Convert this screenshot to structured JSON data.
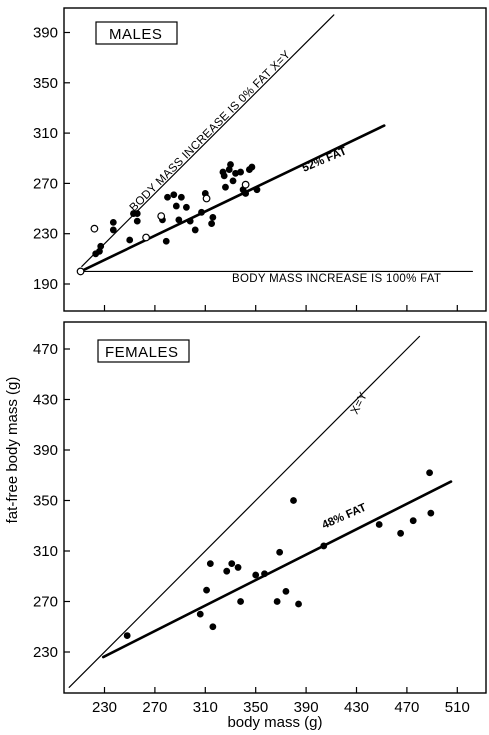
{
  "chart_data": [
    {
      "type": "scatter",
      "panel": "MALES",
      "title": "MALES",
      "xlim": [
        210,
        530
      ],
      "ylim": [
        190,
        410
      ],
      "xticks": [
        230,
        270,
        310,
        350,
        390,
        430,
        470,
        510
      ],
      "yticks": [
        190,
        230,
        270,
        310,
        350,
        390
      ],
      "ytick_labels": [
        "190",
        "230",
        "270",
        "310",
        "350",
        "390"
      ],
      "series": [
        {
          "marker": "filled",
          "points": [
            [
              223,
              214
            ],
            [
              226,
              216
            ],
            [
              227,
              220
            ],
            [
              237,
              233
            ],
            [
              237,
              239
            ],
            [
              250,
              225
            ],
            [
              253,
              246
            ],
            [
              256,
              246
            ],
            [
              256,
              240
            ],
            [
              276,
              241
            ],
            [
              279,
              224
            ],
            [
              280,
              259
            ],
            [
              285,
              261
            ],
            [
              287,
              252
            ],
            [
              289,
              241
            ],
            [
              291,
              259
            ],
            [
              295,
              251
            ],
            [
              298,
              240
            ],
            [
              302,
              233
            ],
            [
              307,
              247
            ],
            [
              310,
              262
            ],
            [
              315,
              238
            ],
            [
              316,
              243
            ],
            [
              324,
              279
            ],
            [
              325,
              276
            ],
            [
              326,
              267
            ],
            [
              329,
              281
            ],
            [
              330,
              285
            ],
            [
              332,
              272
            ],
            [
              334,
              278
            ],
            [
              338,
              279
            ],
            [
              340,
              265
            ],
            [
              342,
              262
            ],
            [
              345,
              281
            ],
            [
              347,
              283
            ],
            [
              351,
              265
            ]
          ]
        },
        {
          "marker": "open",
          "points": [
            [
              211,
              200
            ],
            [
              222,
              234
            ],
            [
              263,
              227
            ],
            [
              275,
              244
            ],
            [
              311,
              258
            ],
            [
              342,
              269
            ]
          ]
        }
      ],
      "lines": [
        {
          "label": "BODY MASS INCREASE IS 0% FAT X=Y",
          "from": [
            212,
            204
          ],
          "to": [
            412,
            404
          ]
        },
        {
          "label": "52% FAT",
          "from": [
            211,
            200
          ],
          "to": [
            452,
            316
          ]
        },
        {
          "label": "BODY MASS INCREASE IS 100% FAT",
          "from": [
            211,
            200
          ],
          "to": [
            522,
            200
          ]
        }
      ]
    },
    {
      "type": "scatter",
      "panel": "FEMALES",
      "title": "FEMALES",
      "xlim": [
        200,
        530
      ],
      "ylim": [
        200,
        480
      ],
      "xticks": [
        230,
        270,
        310,
        350,
        390,
        430,
        470,
        510
      ],
      "yticks": [
        230,
        270,
        310,
        350,
        390,
        430,
        470
      ],
      "series": [
        {
          "marker": "filled",
          "points": [
            [
              248,
              243
            ],
            [
              306,
              260
            ],
            [
              311,
              279
            ],
            [
              314,
              300
            ],
            [
              316,
              250
            ],
            [
              327,
              294
            ],
            [
              331,
              300
            ],
            [
              336,
              297
            ],
            [
              338,
              270
            ],
            [
              350,
              291
            ],
            [
              357,
              292
            ],
            [
              367,
              270
            ],
            [
              369,
              309
            ],
            [
              374,
              278
            ],
            [
              380,
              350
            ],
            [
              384,
              268
            ],
            [
              404,
              314
            ],
            [
              448,
              331
            ],
            [
              465,
              324
            ],
            [
              475,
              334
            ],
            [
              488,
              372
            ],
            [
              489,
              340
            ]
          ]
        }
      ],
      "lines": [
        {
          "label": "X=Y",
          "from": [
            202,
            202
          ],
          "to": [
            480,
            480
          ]
        },
        {
          "label": "48% FAT",
          "from": [
            229,
            226
          ],
          "to": [
            505,
            365
          ]
        }
      ]
    }
  ],
  "text": {
    "panel_males": "MALES",
    "panel_females": "FEMALES",
    "males_diag_label": "BODY MASS INCREASE IS 0% FAT  X=Y",
    "males_fat_label": "52% FAT",
    "males_base_label": "BODY MASS INCREASE IS 100% FAT",
    "females_diag_label": "X=Y",
    "females_fat_label": "48% FAT",
    "ylabel": "fat-free body mass (g)",
    "xlabel": "body mass (g)"
  }
}
